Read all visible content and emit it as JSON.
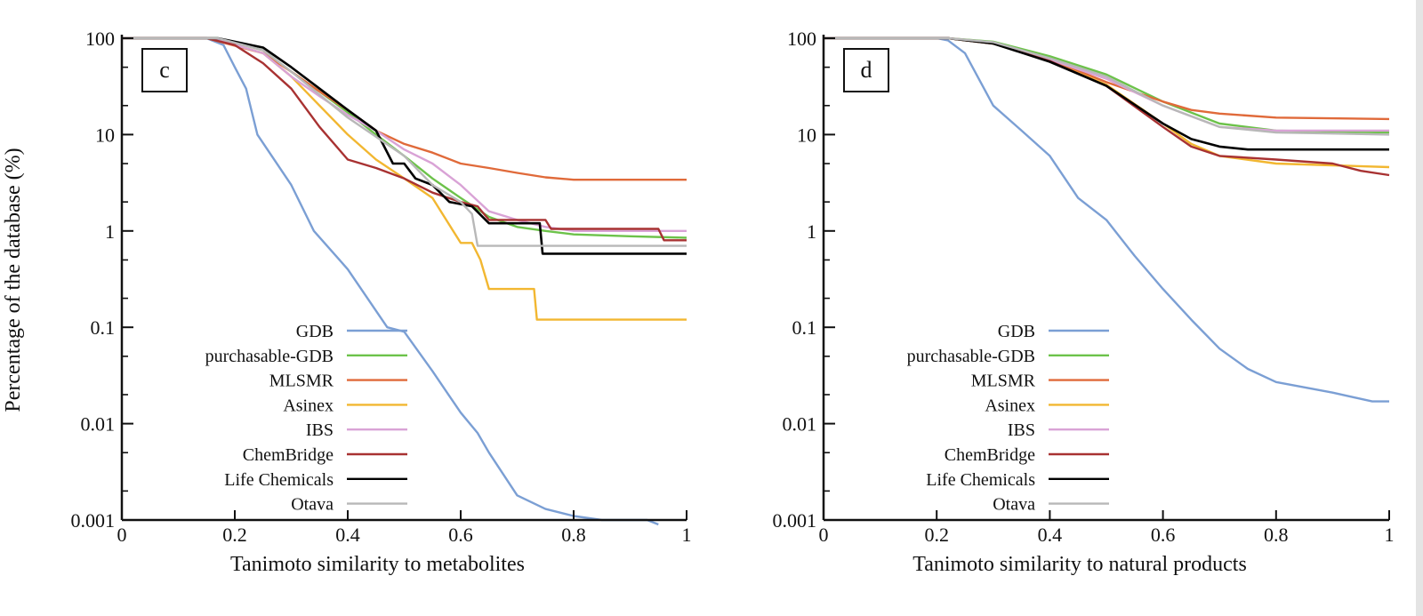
{
  "chart_data": [
    {
      "type": "line",
      "panel_label": "c",
      "xlabel": "Tanimoto similarity to metabolites",
      "ylabel": "Percentage of the database (%)",
      "xlim": [
        0,
        1
      ],
      "ylim": [
        0.001,
        100
      ],
      "yscale": "log",
      "xticks": [
        "0",
        "0.2",
        "0.4",
        "0.6",
        "0.8",
        "1"
      ],
      "yticks": [
        "100",
        "10",
        "1",
        "0.1",
        "0.01",
        "0.001"
      ],
      "grid": false,
      "legend_position": "bottom-left",
      "series": [
        {
          "name": "GDB",
          "color": "#7b9fd4",
          "points": [
            [
              0,
              100
            ],
            [
              0.15,
              100
            ],
            [
              0.18,
              85
            ],
            [
              0.2,
              50
            ],
            [
              0.22,
              30
            ],
            [
              0.24,
              10
            ],
            [
              0.3,
              3
            ],
            [
              0.34,
              1
            ],
            [
              0.4,
              0.4
            ],
            [
              0.47,
              0.1
            ],
            [
              0.5,
              0.09
            ],
            [
              0.55,
              0.035
            ],
            [
              0.6,
              0.013
            ],
            [
              0.63,
              0.008
            ],
            [
              0.65,
              0.005
            ],
            [
              0.7,
              0.0018
            ],
            [
              0.75,
              0.0013
            ],
            [
              0.8,
              0.0011
            ],
            [
              0.85,
              0.001
            ],
            [
              0.93,
              0.001
            ],
            [
              0.95,
              0.0009
            ]
          ]
        },
        {
          "name": "purchasable-GDB",
          "color": "#6cc24a",
          "points": [
            [
              0,
              100
            ],
            [
              0.17,
              100
            ],
            [
              0.25,
              75
            ],
            [
              0.3,
              45
            ],
            [
              0.35,
              28
            ],
            [
              0.4,
              17
            ],
            [
              0.45,
              10
            ],
            [
              0.5,
              6
            ],
            [
              0.55,
              3.5
            ],
            [
              0.6,
              2.2
            ],
            [
              0.65,
              1.4
            ],
            [
              0.7,
              1.1
            ],
            [
              0.75,
              1
            ],
            [
              0.8,
              0.92
            ],
            [
              0.9,
              0.88
            ],
            [
              1,
              0.85
            ]
          ]
        },
        {
          "name": "MLSMR",
          "color": "#e06a3a",
          "points": [
            [
              0,
              100
            ],
            [
              0.15,
              100
            ],
            [
              0.25,
              70
            ],
            [
              0.3,
              45
            ],
            [
              0.35,
              28
            ],
            [
              0.4,
              18
            ],
            [
              0.45,
              11
            ],
            [
              0.5,
              8
            ],
            [
              0.55,
              6.5
            ],
            [
              0.6,
              5
            ],
            [
              0.65,
              4.5
            ],
            [
              0.7,
              4
            ],
            [
              0.75,
              3.6
            ],
            [
              0.8,
              3.4
            ],
            [
              1,
              3.4
            ]
          ]
        },
        {
          "name": "Asinex",
          "color": "#f2b731",
          "points": [
            [
              0,
              100
            ],
            [
              0.16,
              100
            ],
            [
              0.25,
              70
            ],
            [
              0.3,
              40
            ],
            [
              0.35,
              20
            ],
            [
              0.4,
              10
            ],
            [
              0.45,
              5.5
            ],
            [
              0.5,
              3.5
            ],
            [
              0.55,
              2.2
            ],
            [
              0.6,
              0.75
            ],
            [
              0.62,
              0.75
            ],
            [
              0.635,
              0.5
            ],
            [
              0.65,
              0.25
            ],
            [
              0.73,
              0.25
            ],
            [
              0.735,
              0.12
            ],
            [
              1,
              0.12
            ]
          ]
        },
        {
          "name": "IBS",
          "color": "#d9a3d6",
          "points": [
            [
              0,
              100
            ],
            [
              0.16,
              100
            ],
            [
              0.25,
              70
            ],
            [
              0.3,
              40
            ],
            [
              0.35,
              25
            ],
            [
              0.4,
              16
            ],
            [
              0.45,
              11
            ],
            [
              0.5,
              7
            ],
            [
              0.55,
              5
            ],
            [
              0.6,
              3
            ],
            [
              0.65,
              1.6
            ],
            [
              0.7,
              1.3
            ],
            [
              0.75,
              1.1
            ],
            [
              0.8,
              1.0
            ],
            [
              1,
              1.0
            ]
          ]
        },
        {
          "name": "ChemBridge",
          "color": "#a83232",
          "points": [
            [
              0,
              100
            ],
            [
              0.15,
              100
            ],
            [
              0.2,
              85
            ],
            [
              0.25,
              55
            ],
            [
              0.3,
              30
            ],
            [
              0.35,
              12
            ],
            [
              0.4,
              5.5
            ],
            [
              0.45,
              4.5
            ],
            [
              0.5,
              3.5
            ],
            [
              0.55,
              2.5
            ],
            [
              0.6,
              2
            ],
            [
              0.63,
              1.8
            ],
            [
              0.65,
              1.3
            ],
            [
              0.75,
              1.3
            ],
            [
              0.76,
              1.05
            ],
            [
              0.95,
              1.05
            ],
            [
              0.96,
              0.8
            ],
            [
              1,
              0.8
            ]
          ]
        },
        {
          "name": "Life Chemicals",
          "color": "#000000",
          "points": [
            [
              0,
              100
            ],
            [
              0.17,
              100
            ],
            [
              0.25,
              80
            ],
            [
              0.3,
              50
            ],
            [
              0.35,
              30
            ],
            [
              0.4,
              18
            ],
            [
              0.45,
              11
            ],
            [
              0.48,
              5
            ],
            [
              0.5,
              5
            ],
            [
              0.52,
              3.5
            ],
            [
              0.55,
              3
            ],
            [
              0.58,
              2
            ],
            [
              0.62,
              1.8
            ],
            [
              0.65,
              1.2
            ],
            [
              0.74,
              1.2
            ],
            [
              0.745,
              0.58
            ],
            [
              1,
              0.58
            ]
          ]
        },
        {
          "name": "Otava",
          "color": "#b8b8b8",
          "points": [
            [
              0,
              100
            ],
            [
              0.17,
              100
            ],
            [
              0.25,
              75
            ],
            [
              0.3,
              45
            ],
            [
              0.4,
              15
            ],
            [
              0.5,
              6
            ],
            [
              0.55,
              3
            ],
            [
              0.6,
              2
            ],
            [
              0.62,
              1.5
            ],
            [
              0.63,
              0.7
            ],
            [
              1,
              0.7
            ]
          ]
        }
      ]
    },
    {
      "type": "line",
      "panel_label": "d",
      "xlabel": "Tanimoto similarity to natural products",
      "ylabel": "",
      "xlim": [
        0,
        1
      ],
      "ylim": [
        0.001,
        100
      ],
      "yscale": "log",
      "xticks": [
        "0",
        "0.2",
        "0.4",
        "0.6",
        "0.8",
        "1"
      ],
      "yticks": [
        "100",
        "10",
        "1",
        "0.1",
        "0.01",
        "0.001"
      ],
      "grid": false,
      "legend_position": "bottom-left",
      "series": [
        {
          "name": "GDB",
          "color": "#7b9fd4",
          "points": [
            [
              0,
              100
            ],
            [
              0.2,
              100
            ],
            [
              0.22,
              95
            ],
            [
              0.25,
              70
            ],
            [
              0.3,
              20
            ],
            [
              0.35,
              11
            ],
            [
              0.4,
              6
            ],
            [
              0.45,
              2.2
            ],
            [
              0.5,
              1.3
            ],
            [
              0.55,
              0.55
            ],
            [
              0.6,
              0.25
            ],
            [
              0.65,
              0.12
            ],
            [
              0.7,
              0.06
            ],
            [
              0.75,
              0.037
            ],
            [
              0.8,
              0.027
            ],
            [
              0.9,
              0.021
            ],
            [
              0.97,
              0.017
            ],
            [
              1,
              0.017
            ]
          ]
        },
        {
          "name": "purchasable-GDB",
          "color": "#6cc24a",
          "points": [
            [
              0,
              100
            ],
            [
              0.22,
              100
            ],
            [
              0.3,
              92
            ],
            [
              0.4,
              65
            ],
            [
              0.5,
              42
            ],
            [
              0.6,
              22
            ],
            [
              0.7,
              13
            ],
            [
              0.8,
              11
            ],
            [
              1,
              10.5
            ]
          ]
        },
        {
          "name": "MLSMR",
          "color": "#e06a3a",
          "points": [
            [
              0,
              100
            ],
            [
              0.22,
              100
            ],
            [
              0.3,
              90
            ],
            [
              0.4,
              60
            ],
            [
              0.5,
              35
            ],
            [
              0.6,
              22
            ],
            [
              0.65,
              18
            ],
            [
              0.7,
              16.5
            ],
            [
              0.8,
              15
            ],
            [
              1,
              14.5
            ]
          ]
        },
        {
          "name": "Asinex",
          "color": "#f2b731",
          "points": [
            [
              0,
              100
            ],
            [
              0.22,
              100
            ],
            [
              0.3,
              88
            ],
            [
              0.4,
              58
            ],
            [
              0.5,
              33
            ],
            [
              0.6,
              13
            ],
            [
              0.65,
              8
            ],
            [
              0.7,
              6
            ],
            [
              0.8,
              5
            ],
            [
              0.9,
              4.8
            ],
            [
              1,
              4.6
            ]
          ]
        },
        {
          "name": "IBS",
          "color": "#d9a3d6",
          "points": [
            [
              0,
              100
            ],
            [
              0.22,
              100
            ],
            [
              0.3,
              90
            ],
            [
              0.4,
              60
            ],
            [
              0.5,
              38
            ],
            [
              0.6,
              20
            ],
            [
              0.7,
              12
            ],
            [
              0.8,
              11
            ],
            [
              1,
              11
            ]
          ]
        },
        {
          "name": "ChemBridge",
          "color": "#a83232",
          "points": [
            [
              0,
              100
            ],
            [
              0.22,
              100
            ],
            [
              0.3,
              88
            ],
            [
              0.4,
              58
            ],
            [
              0.5,
              32
            ],
            [
              0.6,
              12
            ],
            [
              0.65,
              7.5
            ],
            [
              0.7,
              6
            ],
            [
              0.8,
              5.5
            ],
            [
              0.9,
              5
            ],
            [
              0.95,
              4.2
            ],
            [
              1,
              3.8
            ]
          ]
        },
        {
          "name": "Life Chemicals",
          "color": "#000000",
          "points": [
            [
              0,
              100
            ],
            [
              0.22,
              100
            ],
            [
              0.3,
              88
            ],
            [
              0.4,
              57
            ],
            [
              0.5,
              32
            ],
            [
              0.6,
              13
            ],
            [
              0.65,
              9
            ],
            [
              0.7,
              7.5
            ],
            [
              0.75,
              7
            ],
            [
              1,
              7
            ]
          ]
        },
        {
          "name": "Otava",
          "color": "#b8b8b8",
          "points": [
            [
              0,
              100
            ],
            [
              0.22,
              100
            ],
            [
              0.3,
              91
            ],
            [
              0.4,
              62
            ],
            [
              0.5,
              40
            ],
            [
              0.6,
              20
            ],
            [
              0.7,
              12
            ],
            [
              0.8,
              10.5
            ],
            [
              1,
              10
            ]
          ]
        }
      ]
    }
  ]
}
